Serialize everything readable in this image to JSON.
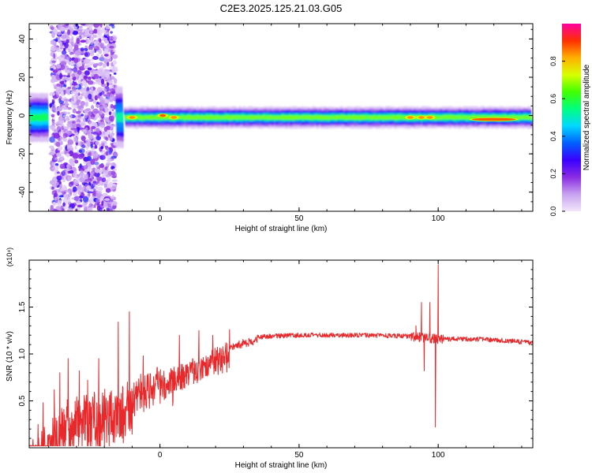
{
  "chart_data": [
    {
      "type": "heatmap",
      "title": "C2E3.2025.125.21.03.G05",
      "xlabel": "Height of straight line (km)",
      "ylabel": "Frequency (Hz)",
      "xlim": [
        -47,
        134
      ],
      "ylim": [
        -50,
        48
      ],
      "xticks": [
        0,
        50,
        100
      ],
      "yticks": [
        -40,
        -20,
        0,
        20,
        40
      ],
      "colorbar": {
        "label": "Normalized spectral amplitude",
        "range": [
          0,
          1
        ],
        "ticks": [
          "0.0",
          "0.2",
          "0.4",
          "0.6",
          "0.8"
        ],
        "colors": [
          "#f2e6fb",
          "#c8a2f0",
          "#8a2be2",
          "#3a00ff",
          "#0060ff",
          "#00d8ff",
          "#00ff80",
          "#40ff00",
          "#d8ff00",
          "#ffb000",
          "#ff3000",
          "#ff00a0"
        ]
      },
      "noise_region_km": [
        -39,
        -16
      ],
      "band_regions": [
        {
          "x": [
            -47,
            -40
          ],
          "half_width_hz": 8,
          "peak": 0.45
        },
        {
          "x": [
            -16,
            -13
          ],
          "half_width_hz": 10,
          "peak": 0.4
        },
        {
          "x": [
            -13,
            134
          ],
          "half_width_hz": 3.5,
          "peak": 0.55
        }
      ],
      "hot_spots": [
        {
          "x": -10,
          "f": -1,
          "amplitude": 0.95
        },
        {
          "x": 1,
          "f": 0,
          "amplitude": 1.0
        },
        {
          "x": 5,
          "f": -1,
          "amplitude": 0.95
        },
        {
          "x": 90,
          "f": -1,
          "amplitude": 0.95
        },
        {
          "x": 94,
          "f": -1,
          "amplitude": 0.95
        },
        {
          "x": 97,
          "f": -1,
          "amplitude": 0.95
        },
        {
          "x": 120,
          "f": -2,
          "amplitude": 1.0
        }
      ]
    },
    {
      "type": "line",
      "xlabel": "Height of straight line (km)",
      "ylabel": "SNR (10 * v/v)",
      "scale_label": "(x10⁴)",
      "xlim": [
        -47,
        134
      ],
      "ylim": [
        0,
        2
      ],
      "xticks": [
        0,
        50,
        100
      ],
      "yticks": [
        0.5,
        1.0,
        1.5
      ],
      "ytick_labels": [
        "0.5",
        "1.0",
        "1.5"
      ],
      "series": [
        {
          "color": "#e8282a",
          "envelope": [
            {
              "x": -47,
              "y": 0.12
            },
            {
              "x": -40,
              "y": 0.25
            },
            {
              "x": -35,
              "y": 0.4
            },
            {
              "x": -30,
              "y": 0.5
            },
            {
              "x": -25,
              "y": 0.52
            },
            {
              "x": -20,
              "y": 0.55
            },
            {
              "x": -15,
              "y": 0.62
            },
            {
              "x": -10,
              "y": 0.7
            },
            {
              "x": -5,
              "y": 0.78
            },
            {
              "x": 0,
              "y": 0.82
            },
            {
              "x": 5,
              "y": 0.85
            },
            {
              "x": 10,
              "y": 0.9
            },
            {
              "x": 15,
              "y": 0.98
            },
            {
              "x": 20,
              "y": 1.05
            },
            {
              "x": 25,
              "y": 1.11
            },
            {
              "x": 30,
              "y": 1.15
            },
            {
              "x": 35,
              "y": 1.18
            },
            {
              "x": 40,
              "y": 1.19
            },
            {
              "x": 50,
              "y": 1.2
            },
            {
              "x": 70,
              "y": 1.2
            },
            {
              "x": 90,
              "y": 1.19
            },
            {
              "x": 95,
              "y": 1.17
            },
            {
              "x": 100,
              "y": 1.16
            },
            {
              "x": 110,
              "y": 1.16
            },
            {
              "x": 120,
              "y": 1.15
            },
            {
              "x": 134,
              "y": 1.12
            }
          ],
          "spikes": [
            {
              "x": -42,
              "y": 0.48
            },
            {
              "x": -38,
              "y": 0.62
            },
            {
              "x": -36,
              "y": 0.8
            },
            {
              "x": -33,
              "y": 0.95
            },
            {
              "x": -29,
              "y": 0.82
            },
            {
              "x": -26,
              "y": 0.72
            },
            {
              "x": -22,
              "y": 0.95
            },
            {
              "x": -15,
              "y": 1.34
            },
            {
              "x": -11,
              "y": 1.45
            },
            {
              "x": -6,
              "y": 0.98
            },
            {
              "x": 7,
              "y": 1.2
            },
            {
              "x": 14,
              "y": 1.25
            },
            {
              "x": 19,
              "y": 1.2
            },
            {
              "x": 25,
              "y": 1.26
            },
            {
              "x": 92,
              "y": 1.3
            },
            {
              "x": 94,
              "y": 1.55
            },
            {
              "x": 95,
              "y": 0.82
            },
            {
              "x": 97,
              "y": 1.55
            },
            {
              "x": 99,
              "y": 0.22
            },
            {
              "x": 100,
              "y": 1.95
            },
            {
              "x": 101,
              "y": 1.2
            }
          ]
        }
      ]
    }
  ]
}
